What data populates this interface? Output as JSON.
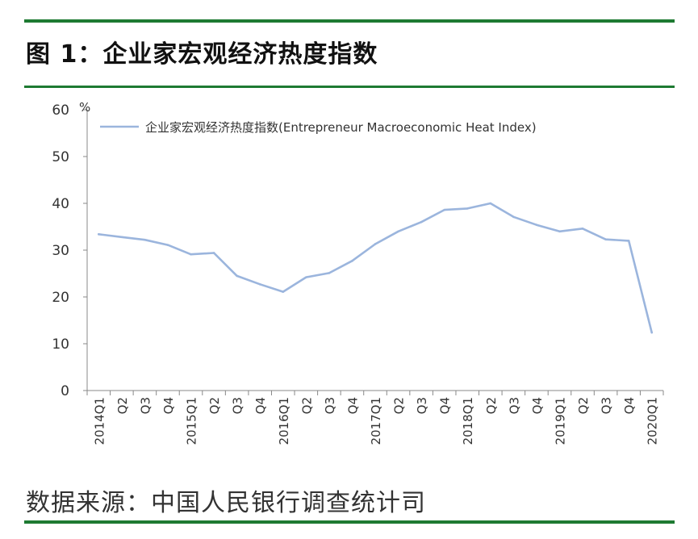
{
  "figure_title": "图 1：企业家宏观经济热度指数",
  "source_note": "数据来源：中国人民银行调查统计司",
  "colors": {
    "rule": "#1e7a32",
    "line": "#9bb5dd",
    "axis": "#888888"
  },
  "chart_data": {
    "type": "line",
    "title": "",
    "xlabel": "",
    "ylabel": "%",
    "ylim": [
      0,
      60
    ],
    "yticks": [
      0,
      10,
      20,
      30,
      40,
      50,
      60
    ],
    "grid": false,
    "legend_position": "top-left",
    "categories": [
      "2014Q1",
      "Q2",
      "Q3",
      "Q4",
      "2015Q1",
      "Q2",
      "Q3",
      "Q4",
      "2016Q1",
      "Q2",
      "Q3",
      "Q4",
      "2017Q1",
      "Q2",
      "Q3",
      "Q4",
      "2018Q1",
      "Q2",
      "Q3",
      "Q4",
      "2019Q1",
      "Q2",
      "Q3",
      "Q4",
      "2020Q1"
    ],
    "series": [
      {
        "name": "企业家宏观经济热度指数(Entrepreneur  Macroeconomic Heat Index)",
        "values": [
          33.4,
          32.8,
          32.2,
          31.1,
          29.1,
          29.4,
          24.5,
          22.7,
          21.1,
          24.2,
          25.1,
          27.7,
          31.3,
          34.0,
          36.0,
          38.6,
          38.9,
          40.0,
          37.1,
          35.4,
          34.0,
          34.6,
          32.3,
          32.0,
          12.4
        ]
      }
    ]
  }
}
